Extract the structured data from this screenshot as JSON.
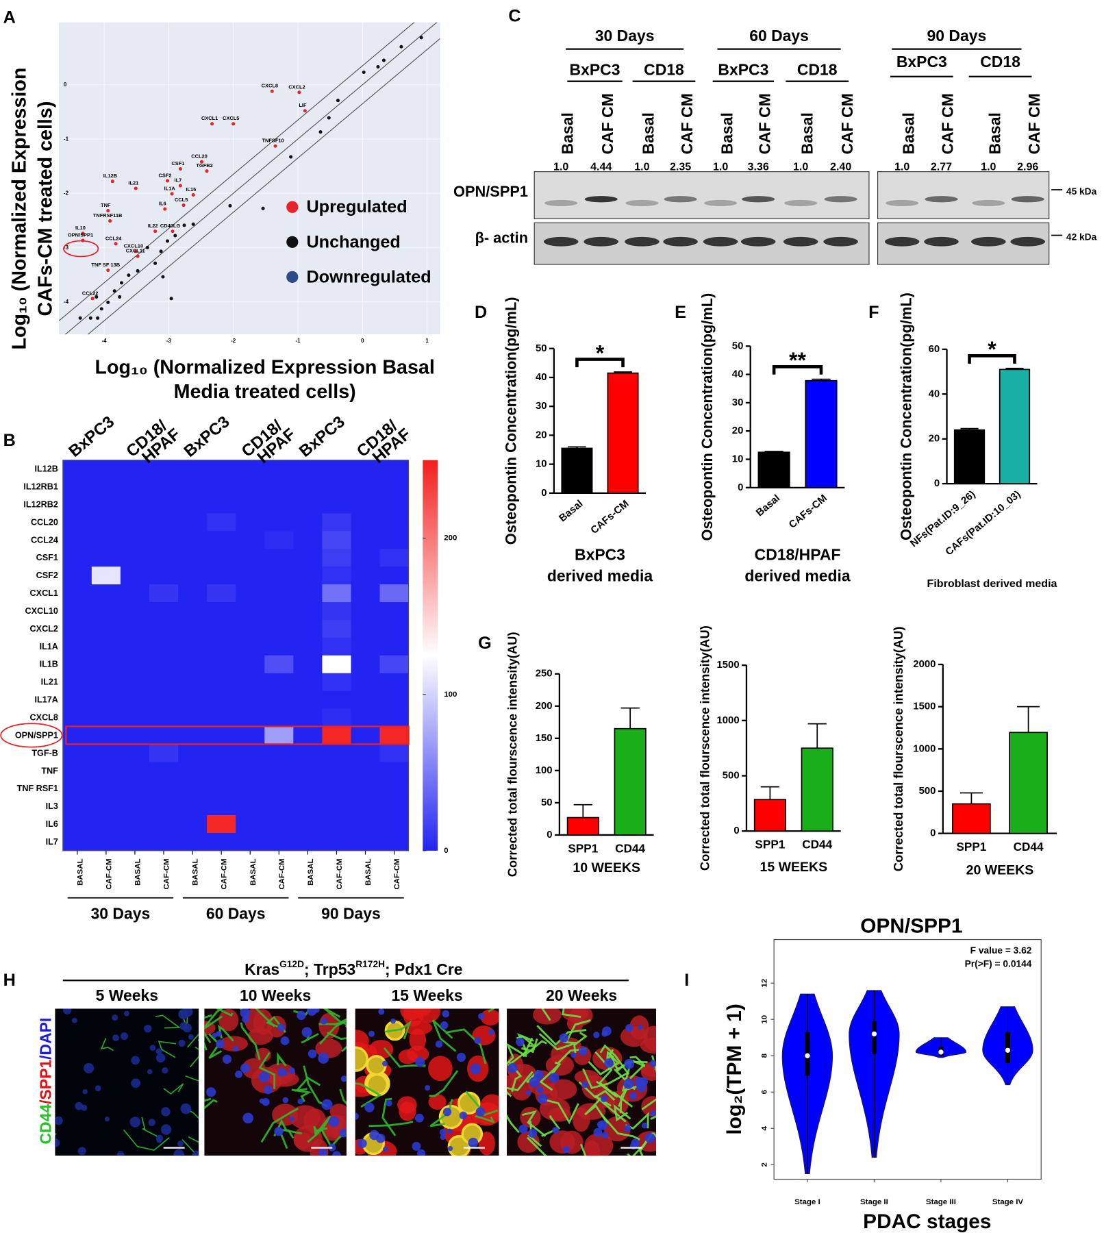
{
  "chart_data": [
    {
      "panel": "A",
      "type": "scatter",
      "xlabel": [
        "Log₁₀ (Normalized Expression Basal",
        "Media treated cells)"
      ],
      "ylabel": [
        "Log₁₀ (Normalized Expression",
        "CAFs-CM treated cells)"
      ],
      "xlim": [
        -4.7,
        1.2
      ],
      "ylim": [
        -4.6,
        1.15
      ],
      "xticks": [
        -4,
        -3,
        -2,
        -1,
        0,
        1
      ],
      "yticks": [
        -4,
        -3,
        -2,
        -1,
        0
      ],
      "series": [
        {
          "name": "Upregulated",
          "color": "#e8212a",
          "labels": [
            "CXCL8",
            "CXCL2",
            "LIF",
            "CXCL1",
            "CXCL5",
            "TNFSF10",
            "CCL20",
            "TGFB2",
            "CSF1",
            "CSF2",
            "IL7",
            "IL12B",
            "IL21",
            "IL1A",
            "IL15",
            "IL6",
            "CCL5",
            "TNF",
            "TNFRSF11B",
            "IL22",
            "CD40LG",
            "IL10",
            "OPN/SPP1",
            "CCL24",
            "CXCL10",
            "CXCL11",
            "TNF SF 13B",
            "CCL22"
          ],
          "x": [
            -1.4,
            -0.98,
            -0.89,
            -2.33,
            -2.0,
            -1.35,
            -2.49,
            -2.41,
            -2.82,
            -3.02,
            -2.82,
            -3.87,
            -3.51,
            -2.95,
            -2.62,
            -3.06,
            -2.77,
            -3.94,
            -3.91,
            -3.21,
            -2.94,
            -4.33,
            -4.33,
            -3.82,
            -3.51,
            -3.48,
            -3.94,
            -4.18
          ],
          "y": [
            -0.12,
            -0.14,
            -0.48,
            -0.72,
            -0.72,
            -1.13,
            -1.42,
            -1.59,
            -1.55,
            -1.77,
            -1.86,
            -1.78,
            -1.91,
            -2.01,
            -2.03,
            -2.29,
            -2.22,
            -2.32,
            -2.51,
            -2.7,
            -2.7,
            -2.74,
            -2.87,
            -2.93,
            -3.07,
            -3.16,
            -3.42,
            -3.94
          ]
        },
        {
          "name": "Unchanged",
          "color": "#111111",
          "x": [
            -4.37,
            -4.21,
            -4.1,
            -4.04,
            -3.94,
            -4.12,
            -3.84,
            -3.76,
            -3.73,
            -3.62,
            -3.48,
            -3.21,
            -3.12,
            -3.09,
            -2.96,
            -3.02,
            -2.9,
            -2.76,
            -2.62,
            -2.05,
            -1.54,
            -1.11,
            -0.65,
            -0.52,
            -0.38,
            0.02,
            0.24,
            0.33,
            0.6,
            0.91,
            -3.33
          ],
          "y": [
            -4.3,
            -4.3,
            -4.3,
            -4.13,
            -4.01,
            -3.91,
            -3.8,
            -3.91,
            -3.65,
            -3.51,
            -3.43,
            -3.29,
            -3.07,
            -3.54,
            -3.94,
            -2.88,
            -2.78,
            -2.59,
            -2.57,
            -2.23,
            -2.28,
            -1.33,
            -0.87,
            -0.61,
            -0.29,
            0.23,
            0.33,
            0.45,
            0.7,
            0.87,
            -3.0
          ]
        },
        {
          "name": "Downregulated",
          "color": "#2b4a86",
          "x": [],
          "y": []
        }
      ]
    },
    {
      "panel": "B",
      "type": "heatmap",
      "column_headers": [
        [
          "BxPC3"
        ],
        [
          "CD18/",
          "HPAF"
        ],
        [
          "BxPC3"
        ],
        [
          "CD18/",
          "HPAF"
        ],
        [
          "BxPC3"
        ],
        [
          "CD18/",
          "HPAF"
        ]
      ],
      "categories": [
        "IL12B",
        "IL12RB1",
        "IL12RB2",
        "CCL20",
        "CCL24",
        "CSF1",
        "CSF2",
        "CXCL1",
        "CXCL10",
        "CXCL2",
        "IL1A",
        "IL1B",
        "IL21",
        "IL17A",
        "CXCL8",
        "OPN/SPP1",
        "TGF-B",
        "TNF",
        "TNF RSF1",
        "IL3",
        "IL6",
        "IL7"
      ],
      "columns": [
        "BASAL",
        "CAF-CM",
        "BASAL",
        "CAF-CM",
        "BASAL",
        "CAF-CM",
        "BASAL",
        "CAF-CM",
        "BASAL",
        "CAF-CM",
        "BASAL",
        "CAF-CM"
      ],
      "day_groups": [
        "30 Days",
        "60 Days",
        "90 Days"
      ],
      "values": [
        [
          0,
          0,
          0,
          0,
          0,
          0,
          0,
          0,
          0,
          0,
          0,
          0
        ],
        [
          0,
          0,
          0,
          0,
          0,
          0,
          0,
          0,
          0,
          0,
          0,
          0
        ],
        [
          0,
          0,
          0,
          0,
          0,
          0,
          0,
          0,
          0,
          0,
          0,
          0
        ],
        [
          0,
          0,
          0,
          0,
          0,
          8,
          0,
          0,
          0,
          12,
          0,
          0
        ],
        [
          0,
          0,
          0,
          0,
          0,
          0,
          0,
          5,
          0,
          20,
          0,
          0
        ],
        [
          0,
          0,
          0,
          0,
          0,
          0,
          0,
          0,
          0,
          15,
          0,
          8
        ],
        [
          0,
          110,
          0,
          0,
          0,
          0,
          0,
          0,
          0,
          8,
          0,
          0
        ],
        [
          0,
          0,
          0,
          10,
          0,
          10,
          0,
          0,
          0,
          45,
          0,
          40
        ],
        [
          0,
          0,
          0,
          0,
          0,
          0,
          0,
          0,
          0,
          10,
          0,
          0
        ],
        [
          0,
          0,
          0,
          0,
          0,
          0,
          0,
          0,
          0,
          15,
          0,
          0
        ],
        [
          0,
          0,
          0,
          0,
          0,
          0,
          0,
          0,
          0,
          8,
          0,
          0
        ],
        [
          0,
          0,
          0,
          0,
          0,
          0,
          0,
          25,
          0,
          125,
          0,
          20
        ],
        [
          0,
          0,
          0,
          0,
          0,
          0,
          0,
          0,
          0,
          8,
          0,
          0
        ],
        [
          0,
          0,
          0,
          0,
          0,
          0,
          0,
          0,
          0,
          0,
          0,
          0
        ],
        [
          0,
          0,
          0,
          0,
          0,
          0,
          0,
          0,
          0,
          5,
          0,
          0
        ],
        [
          0,
          0,
          0,
          0,
          0,
          0,
          0,
          70,
          0,
          245,
          0,
          245
        ],
        [
          0,
          0,
          0,
          10,
          0,
          0,
          0,
          0,
          0,
          0,
          0,
          8
        ],
        [
          0,
          0,
          0,
          0,
          0,
          0,
          0,
          0,
          0,
          0,
          0,
          0
        ],
        [
          0,
          0,
          0,
          0,
          0,
          0,
          0,
          0,
          0,
          0,
          0,
          0
        ],
        [
          0,
          0,
          0,
          0,
          0,
          0,
          0,
          0,
          0,
          0,
          0,
          0
        ],
        [
          0,
          0,
          0,
          0,
          0,
          245,
          0,
          0,
          0,
          0,
          0,
          0
        ],
        [
          0,
          0,
          0,
          0,
          0,
          0,
          0,
          0,
          0,
          0,
          0,
          0
        ]
      ],
      "zlim": [
        0,
        250
      ],
      "zticks": [
        0,
        100,
        200
      ],
      "colormap": [
        "#2323f2",
        "#ffffff",
        "#f41e1e"
      ]
    },
    {
      "panel": "D",
      "type": "bar",
      "categories": [
        "Basal",
        "CAFs-CM"
      ],
      "values": [
        15.5,
        41.5
      ],
      "errors": [
        0.5,
        0.4
      ],
      "colors": [
        "#000000",
        "#ff0000"
      ],
      "ylim": [
        0,
        50
      ],
      "yticks": [
        0,
        10,
        20,
        30,
        40,
        50
      ],
      "ylabel": "Osteopontin Concentration(pg/mL)",
      "xlabel": [
        "BxPC3",
        "derived media"
      ],
      "significance": "*"
    },
    {
      "panel": "E",
      "type": "bar",
      "categories": [
        "Basal",
        "CAFs-CM"
      ],
      "values": [
        12.5,
        37.8
      ],
      "errors": [
        0.3,
        0.5
      ],
      "colors": [
        "#000000",
        "#0000ff"
      ],
      "ylim": [
        0,
        50
      ],
      "yticks": [
        0,
        10,
        20,
        30,
        40,
        50
      ],
      "ylabel": "Osteopontin Concentration(pg/mL)",
      "xlabel": [
        "CD18/HPAF",
        "derived media"
      ],
      "significance": "**"
    },
    {
      "panel": "F",
      "type": "bar",
      "categories": [
        "NFs(Pat.ID:9_26)",
        "CAFs(Pat.ID:10_03)"
      ],
      "values": [
        24,
        51
      ],
      "errors": [
        0.6,
        0.5
      ],
      "colors": [
        "#000000",
        "#1bb0a6"
      ],
      "ylim": [
        0,
        60
      ],
      "yticks": [
        0,
        20,
        40,
        60
      ],
      "ylabel": "Osteopontin Concentration(pg/mL)",
      "xlabel": [
        "Fibroblast derived media"
      ],
      "significance": "*"
    },
    {
      "panel": "G",
      "type": "bar",
      "categories": [
        "SPP1",
        "CD44"
      ],
      "values": [
        27,
        165
      ],
      "errors": [
        20,
        32
      ],
      "colors": [
        "#ff0000",
        "#1aae1a"
      ],
      "ylim": [
        0,
        250
      ],
      "yticks": [
        0,
        50,
        100,
        150,
        200,
        250
      ],
      "ylabel": "Corrected total flourscence intensity(AU)",
      "xlabel": [
        "10 WEEKS"
      ]
    },
    {
      "type": "bar",
      "categories": [
        "SPP1",
        "CD44"
      ],
      "values": [
        285,
        750
      ],
      "errors": [
        115,
        220
      ],
      "colors": [
        "#ff0000",
        "#1aae1a"
      ],
      "ylim": [
        0,
        1500
      ],
      "yticks": [
        0,
        500,
        1000,
        1500
      ],
      "ylabel": "Corrected total flourscence intensity(AU)",
      "xlabel": [
        "15 WEEKS"
      ]
    },
    {
      "type": "bar",
      "categories": [
        "SPP1",
        "CD44"
      ],
      "values": [
        350,
        1195
      ],
      "errors": [
        130,
        305
      ],
      "colors": [
        "#ff0000",
        "#1aae1a"
      ],
      "ylim": [
        0,
        2000
      ],
      "yticks": [
        0,
        500,
        1000,
        1500,
        2000
      ],
      "ylabel": "Corrected total flourscence intensity(AU)",
      "xlabel": [
        "20 WEEKS"
      ]
    },
    {
      "panel": "I",
      "type": "violin",
      "title": "OPN/SPP1",
      "xlabel": "PDAC stages",
      "ylabel": "log₂(TPM + 1)",
      "categories": [
        "Stage I",
        "Stage II",
        "Stage III",
        "Stage IV"
      ],
      "min": [
        1.5,
        2.4,
        7.9,
        6.4
      ],
      "q1": [
        6.9,
        8.1,
        8.0,
        7.6
      ],
      "median": [
        8.0,
        9.2,
        8.2,
        8.3
      ],
      "q3": [
        9.3,
        9.9,
        8.5,
        9.3
      ],
      "max": [
        11.4,
        11.6,
        9.0,
        10.7
      ],
      "color": "#0000ff",
      "ylim": [
        1.2,
        14.4
      ],
      "yticks": [
        2,
        4,
        6,
        8,
        10,
        12
      ],
      "annotations": [
        "F value = 3.62",
        "Pr(>F) = 0.0144"
      ]
    }
  ],
  "blot": {
    "panel": "C",
    "groups": [
      {
        "label": "30 Days",
        "subgroups": [
          "BxPC3",
          "CD18"
        ]
      },
      {
        "label": "60 Days",
        "subgroups": [
          "BxPC3",
          "CD18"
        ]
      },
      {
        "label": "90 Days",
        "subgroups": [
          "BxPC3",
          "CD18"
        ]
      }
    ],
    "lanes": [
      "Basal",
      "CAF CM",
      "Basal",
      "CAF CM",
      "Basal",
      "CAF CM",
      "Basal",
      "CAF CM",
      "Basal",
      "CAF CM",
      "Basal",
      "CAF CM"
    ],
    "quant": [
      "1.0",
      "4.44",
      "1.0",
      "2.35",
      "1.0",
      "3.36",
      "1.0",
      "2.40",
      "1.0",
      "2.77",
      "1.0",
      "2.96"
    ],
    "rows": [
      "OPN/SPP1",
      "β- actin"
    ],
    "markers": [
      "45 kDa",
      "42 kDa"
    ]
  },
  "micrographs": {
    "panel": "H",
    "title_parts": [
      {
        "text": "Kras"
      },
      {
        "text": "G12D",
        "sup": true
      },
      {
        "text": "; Trp53"
      },
      {
        "text": "R172H",
        "sup": true
      },
      {
        "text": "; Pdx1 Cre"
      }
    ],
    "stain_parts": [
      {
        "text": "CD44",
        "color": "#22c422"
      },
      {
        "text": "/SPP1",
        "color": "#e01010"
      },
      {
        "text": "/DAPI",
        "color": "#1a1ae0"
      }
    ],
    "labels": [
      "5 Weeks",
      "10 Weeks",
      "15 Weeks",
      "20 Weeks"
    ]
  }
}
